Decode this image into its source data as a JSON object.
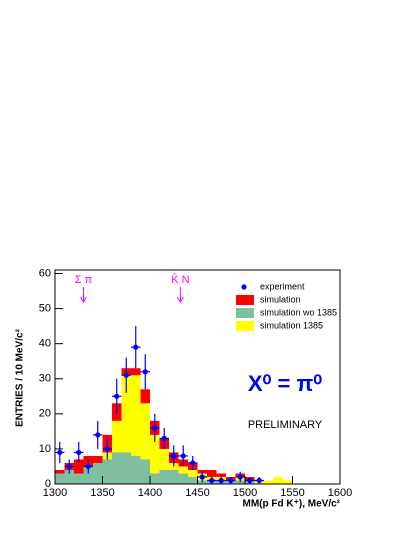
{
  "chart_data": {
    "type": "histogram",
    "y_label": "ENTRIES / 10 MeV/c²",
    "x_label": "MM(p Fd K⁺), MeV/c²",
    "bins": [
      1300,
      1310,
      1320,
      1330,
      1340,
      1350,
      1360,
      1370,
      1380,
      1390,
      1400,
      1410,
      1420,
      1430,
      1440,
      1450,
      1460,
      1470,
      1480,
      1490,
      1500,
      1510,
      1520,
      1530,
      1540,
      1550
    ],
    "series": [
      {
        "name": "simulation",
        "color": "#ff0000",
        "values": [
          4,
          6,
          7,
          8,
          8,
          14,
          23,
          33,
          33,
          27,
          18,
          13,
          9,
          7,
          6,
          4,
          4,
          3,
          2,
          3,
          2,
          1,
          1,
          1,
          1
        ]
      },
      {
        "name": "simulation 1385",
        "color": "#ffff00",
        "values": [
          1,
          2,
          2,
          3,
          4,
          9,
          18,
          31,
          31,
          23,
          14,
          10,
          6,
          5,
          4,
          3,
          2,
          2,
          1,
          2,
          1,
          1,
          1,
          2,
          1
        ]
      },
      {
        "name": "simulation wo 1385",
        "color": "#7fbf9f",
        "values": [
          3,
          4,
          3,
          5,
          6,
          7,
          9,
          9,
          8,
          7,
          3,
          4,
          4,
          3,
          2,
          1,
          1,
          1,
          1,
          1,
          1,
          0,
          0,
          0,
          0
        ]
      }
    ],
    "experiment": {
      "name": "experiment",
      "color": "#0000ff",
      "x": [
        1305,
        1315,
        1325,
        1335,
        1345,
        1355,
        1365,
        1375,
        1385,
        1395,
        1405,
        1415,
        1425,
        1435,
        1445,
        1455,
        1465,
        1475,
        1485,
        1495,
        1505,
        1515
      ],
      "values": [
        9,
        5,
        9,
        5,
        14,
        10,
        25,
        31,
        39,
        32,
        16,
        13,
        8,
        8,
        6,
        2,
        1,
        1,
        1,
        2,
        1,
        1
      ],
      "errors": [
        3,
        2,
        3,
        2,
        4,
        3,
        5,
        5,
        6,
        5,
        4,
        3,
        3,
        3,
        2,
        1.5,
        1,
        1,
        1,
        1.5,
        1,
        1
      ]
    },
    "legend_order": [
      "experiment",
      "simulation",
      "simulation wo 1385",
      "simulation 1385"
    ],
    "annotations": [
      {
        "text": "Σ π",
        "x": 1330,
        "color": "#ff00ff"
      },
      {
        "text": "K̄ N",
        "x": 1432,
        "color": "#ff00ff"
      }
    ],
    "formula": "X⁰ = π⁰",
    "watermark": "PRELIMINARY",
    "xlim": [
      1300,
      1600
    ],
    "ylim": [
      0,
      61
    ],
    "xticks": [
      1300,
      1350,
      1400,
      1450,
      1500,
      1550,
      1600
    ],
    "yticks": [
      0,
      10,
      20,
      30,
      40,
      50,
      60
    ]
  }
}
